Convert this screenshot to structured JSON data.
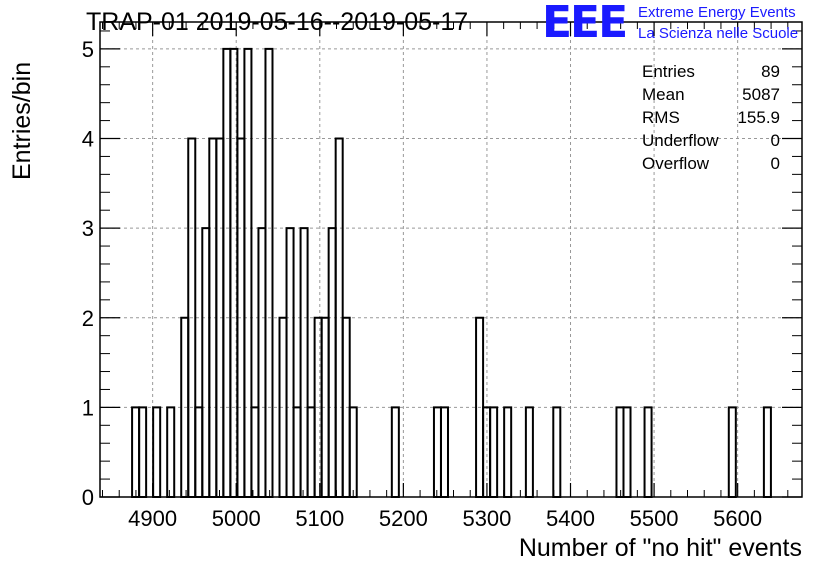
{
  "header": {
    "title": "TRAP-01 2019-05-16--2019-05-17",
    "logo_text": "EEE",
    "logo_line1": "Extreme Energy Events",
    "logo_line2": "La Scienza nelle Scuole"
  },
  "stats": [
    {
      "label": "Entries",
      "value": "89"
    },
    {
      "label": "Mean",
      "value": "5087"
    },
    {
      "label": "RMS",
      "value": "155.9"
    },
    {
      "label": "Underflow",
      "value": "0"
    },
    {
      "label": "Overflow",
      "value": "0"
    }
  ],
  "colors": {
    "line": "#000000",
    "grid": "#999999",
    "logo": "#1a1aff"
  },
  "chart_data": {
    "type": "bar",
    "title": "TRAP-01 2019-05-16--2019-05-17",
    "xlabel": "Number of \"no hit\" events",
    "ylabel": "Entries/bin",
    "xlim": [
      4837,
      5677
    ],
    "ylim": [
      0,
      5.3
    ],
    "bin_width": 8.4,
    "grid": true,
    "legend": "none",
    "x_ticks": [
      4900,
      5000,
      5100,
      5200,
      5300,
      5400,
      5500,
      5600
    ],
    "y_ticks": [
      0,
      1,
      2,
      3,
      4,
      5
    ],
    "bins": [
      {
        "x": 4875.4,
        "y": 1
      },
      {
        "x": 4883.8,
        "y": 1
      },
      {
        "x": 4900.6,
        "y": 1
      },
      {
        "x": 4917.4,
        "y": 1
      },
      {
        "x": 4934.2,
        "y": 2
      },
      {
        "x": 4942.6,
        "y": 4
      },
      {
        "x": 4951.0,
        "y": 1
      },
      {
        "x": 4959.4,
        "y": 3
      },
      {
        "x": 4967.8,
        "y": 4
      },
      {
        "x": 4976.2,
        "y": 4
      },
      {
        "x": 4984.6,
        "y": 5
      },
      {
        "x": 4993.0,
        "y": 5
      },
      {
        "x": 5001.4,
        "y": 4
      },
      {
        "x": 5009.8,
        "y": 5
      },
      {
        "x": 5018.2,
        "y": 1
      },
      {
        "x": 5026.6,
        "y": 3
      },
      {
        "x": 5035.0,
        "y": 5
      },
      {
        "x": 5051.8,
        "y": 2
      },
      {
        "x": 5060.2,
        "y": 3
      },
      {
        "x": 5068.6,
        "y": 1
      },
      {
        "x": 5077.0,
        "y": 3
      },
      {
        "x": 5085.4,
        "y": 1
      },
      {
        "x": 5093.8,
        "y": 2
      },
      {
        "x": 5102.2,
        "y": 2
      },
      {
        "x": 5110.6,
        "y": 3
      },
      {
        "x": 5119.0,
        "y": 4
      },
      {
        "x": 5127.4,
        "y": 2
      },
      {
        "x": 5135.8,
        "y": 1
      },
      {
        "x": 5186.2,
        "y": 1
      },
      {
        "x": 5236.6,
        "y": 1
      },
      {
        "x": 5245.0,
        "y": 1
      },
      {
        "x": 5287.0,
        "y": 2
      },
      {
        "x": 5295.4,
        "y": 1
      },
      {
        "x": 5303.8,
        "y": 1
      },
      {
        "x": 5320.6,
        "y": 1
      },
      {
        "x": 5346.6,
        "y": 1
      },
      {
        "x": 5379.4,
        "y": 1
      },
      {
        "x": 5455.0,
        "y": 1
      },
      {
        "x": 5463.4,
        "y": 1
      },
      {
        "x": 5488.6,
        "y": 1
      },
      {
        "x": 5589.4,
        "y": 1
      },
      {
        "x": 5631.4,
        "y": 1
      }
    ]
  }
}
